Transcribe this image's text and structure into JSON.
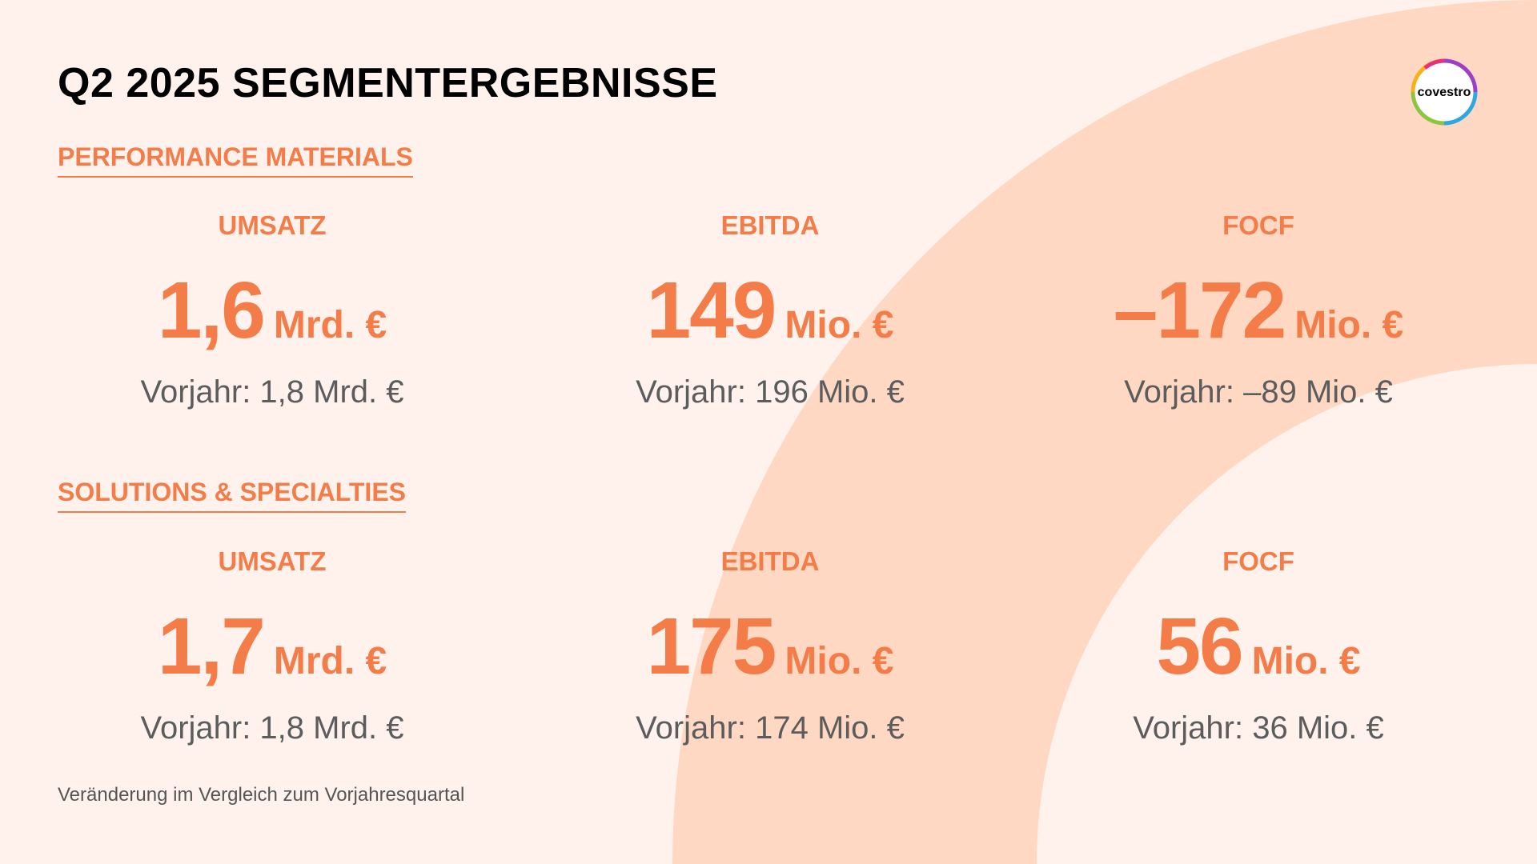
{
  "slide": {
    "title": "Q2 2025 SEGMENTERGEBNISSE",
    "footnote": "Veränderung im Vergleich zum Vorjahresquartal"
  },
  "logo": {
    "text": "covestro",
    "icon": "covestro-ring-logo"
  },
  "colors": {
    "background": "#FFF2EC",
    "arc": "#FFD8C4",
    "accent": "#F47C48",
    "title": "#000000",
    "secondary_text": "#5C5C5C"
  },
  "segments": [
    {
      "name": "PERFORMANCE MATERIALS",
      "kpis": [
        {
          "label": "UMSATZ",
          "value": "1,6",
          "unit": "Mrd. €",
          "prior": "Vorjahr: 1,8 Mrd. €"
        },
        {
          "label": "EBITDA",
          "value": "149",
          "unit": "Mio. €",
          "prior": "Vorjahr: 196 Mio. €"
        },
        {
          "label": "FOCF",
          "value": "–172",
          "unit": "Mio. €",
          "prior": "Vorjahr: –89 Mio. €"
        }
      ]
    },
    {
      "name": "SOLUTIONS & SPECIALTIES",
      "kpis": [
        {
          "label": "UMSATZ",
          "value": "1,7",
          "unit": "Mrd. €",
          "prior": "Vorjahr: 1,8 Mrd. €"
        },
        {
          "label": "EBITDA",
          "value": "175",
          "unit": "Mio. €",
          "prior": "Vorjahr: 174 Mio. €"
        },
        {
          "label": "FOCF",
          "value": "56",
          "unit": "Mio. €",
          "prior": "Vorjahr: 36 Mio. €"
        }
      ]
    }
  ]
}
